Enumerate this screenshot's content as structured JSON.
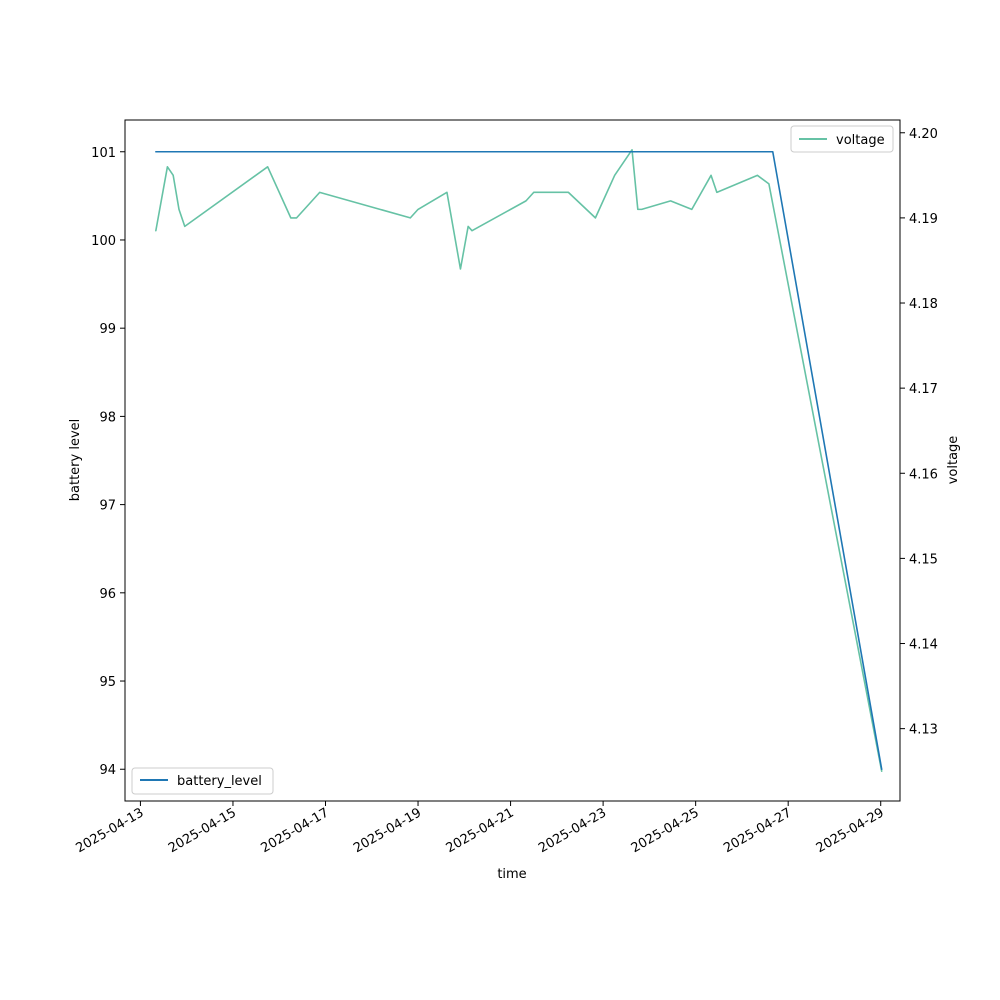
{
  "chart_data": {
    "type": "line",
    "xlabel": "time",
    "ylabel": "battery level",
    "y2label": "voltage",
    "xlim": [
      "2025-04-12T16:00",
      "2025-04-29T10:00"
    ],
    "ylim": [
      93.64,
      101.36
    ],
    "y2lim": [
      4.1215,
      4.2015
    ],
    "x_ticks": [
      "2025-04-13",
      "2025-04-15",
      "2025-04-17",
      "2025-04-19",
      "2025-04-21",
      "2025-04-23",
      "2025-04-25",
      "2025-04-27",
      "2025-04-29"
    ],
    "y_ticks": [
      94,
      95,
      96,
      97,
      98,
      99,
      100,
      101
    ],
    "y2_ticks": [
      4.13,
      4.14,
      4.15,
      4.16,
      4.17,
      4.18,
      4.19,
      4.2
    ],
    "y2_tick_labels": [
      "4.13",
      "4.14",
      "4.15",
      "4.16",
      "4.17",
      "4.18",
      "4.19",
      "4.20"
    ],
    "grid": false,
    "series": [
      {
        "name": "battery_level",
        "axis": "left",
        "color": "#1f77b4",
        "legend_position": "lower-left",
        "x": [
          "2025-04-13T08:00",
          "2025-04-26T16:00",
          "2025-04-29T00:30"
        ],
        "y": [
          101,
          101,
          94
        ]
      },
      {
        "name": "voltage",
        "axis": "right",
        "color": "#66c2a5",
        "legend_position": "upper-right",
        "x": [
          "2025-04-13T08:00",
          "2025-04-13T14:00",
          "2025-04-13T17:00",
          "2025-04-13T20:00",
          "2025-04-13T23:00",
          "2025-04-15T18:00",
          "2025-04-16T06:00",
          "2025-04-16T09:00",
          "2025-04-16T21:00",
          "2025-04-18T20:00",
          "2025-04-19T00:00",
          "2025-04-19T15:00",
          "2025-04-19T22:00",
          "2025-04-20T02:00",
          "2025-04-20T04:00",
          "2025-04-21T08:00",
          "2025-04-21T12:00",
          "2025-04-22T06:00",
          "2025-04-22T20:00",
          "2025-04-23T06:00",
          "2025-04-23T15:00",
          "2025-04-23T18:00",
          "2025-04-23T20:00",
          "2025-04-24T11:00",
          "2025-04-24T22:00",
          "2025-04-25T08:00",
          "2025-04-25T11:00",
          "2025-04-26T08:00",
          "2025-04-26T14:00",
          "2025-04-29T00:30"
        ],
        "y": [
          4.1885,
          4.196,
          4.195,
          4.191,
          4.189,
          4.196,
          4.19,
          4.19,
          4.193,
          4.19,
          4.191,
          4.193,
          4.184,
          4.189,
          4.1885,
          4.192,
          4.193,
          4.193,
          4.19,
          4.195,
          4.198,
          4.191,
          4.191,
          4.192,
          4.191,
          4.195,
          4.193,
          4.195,
          4.194,
          4.125
        ]
      }
    ]
  }
}
